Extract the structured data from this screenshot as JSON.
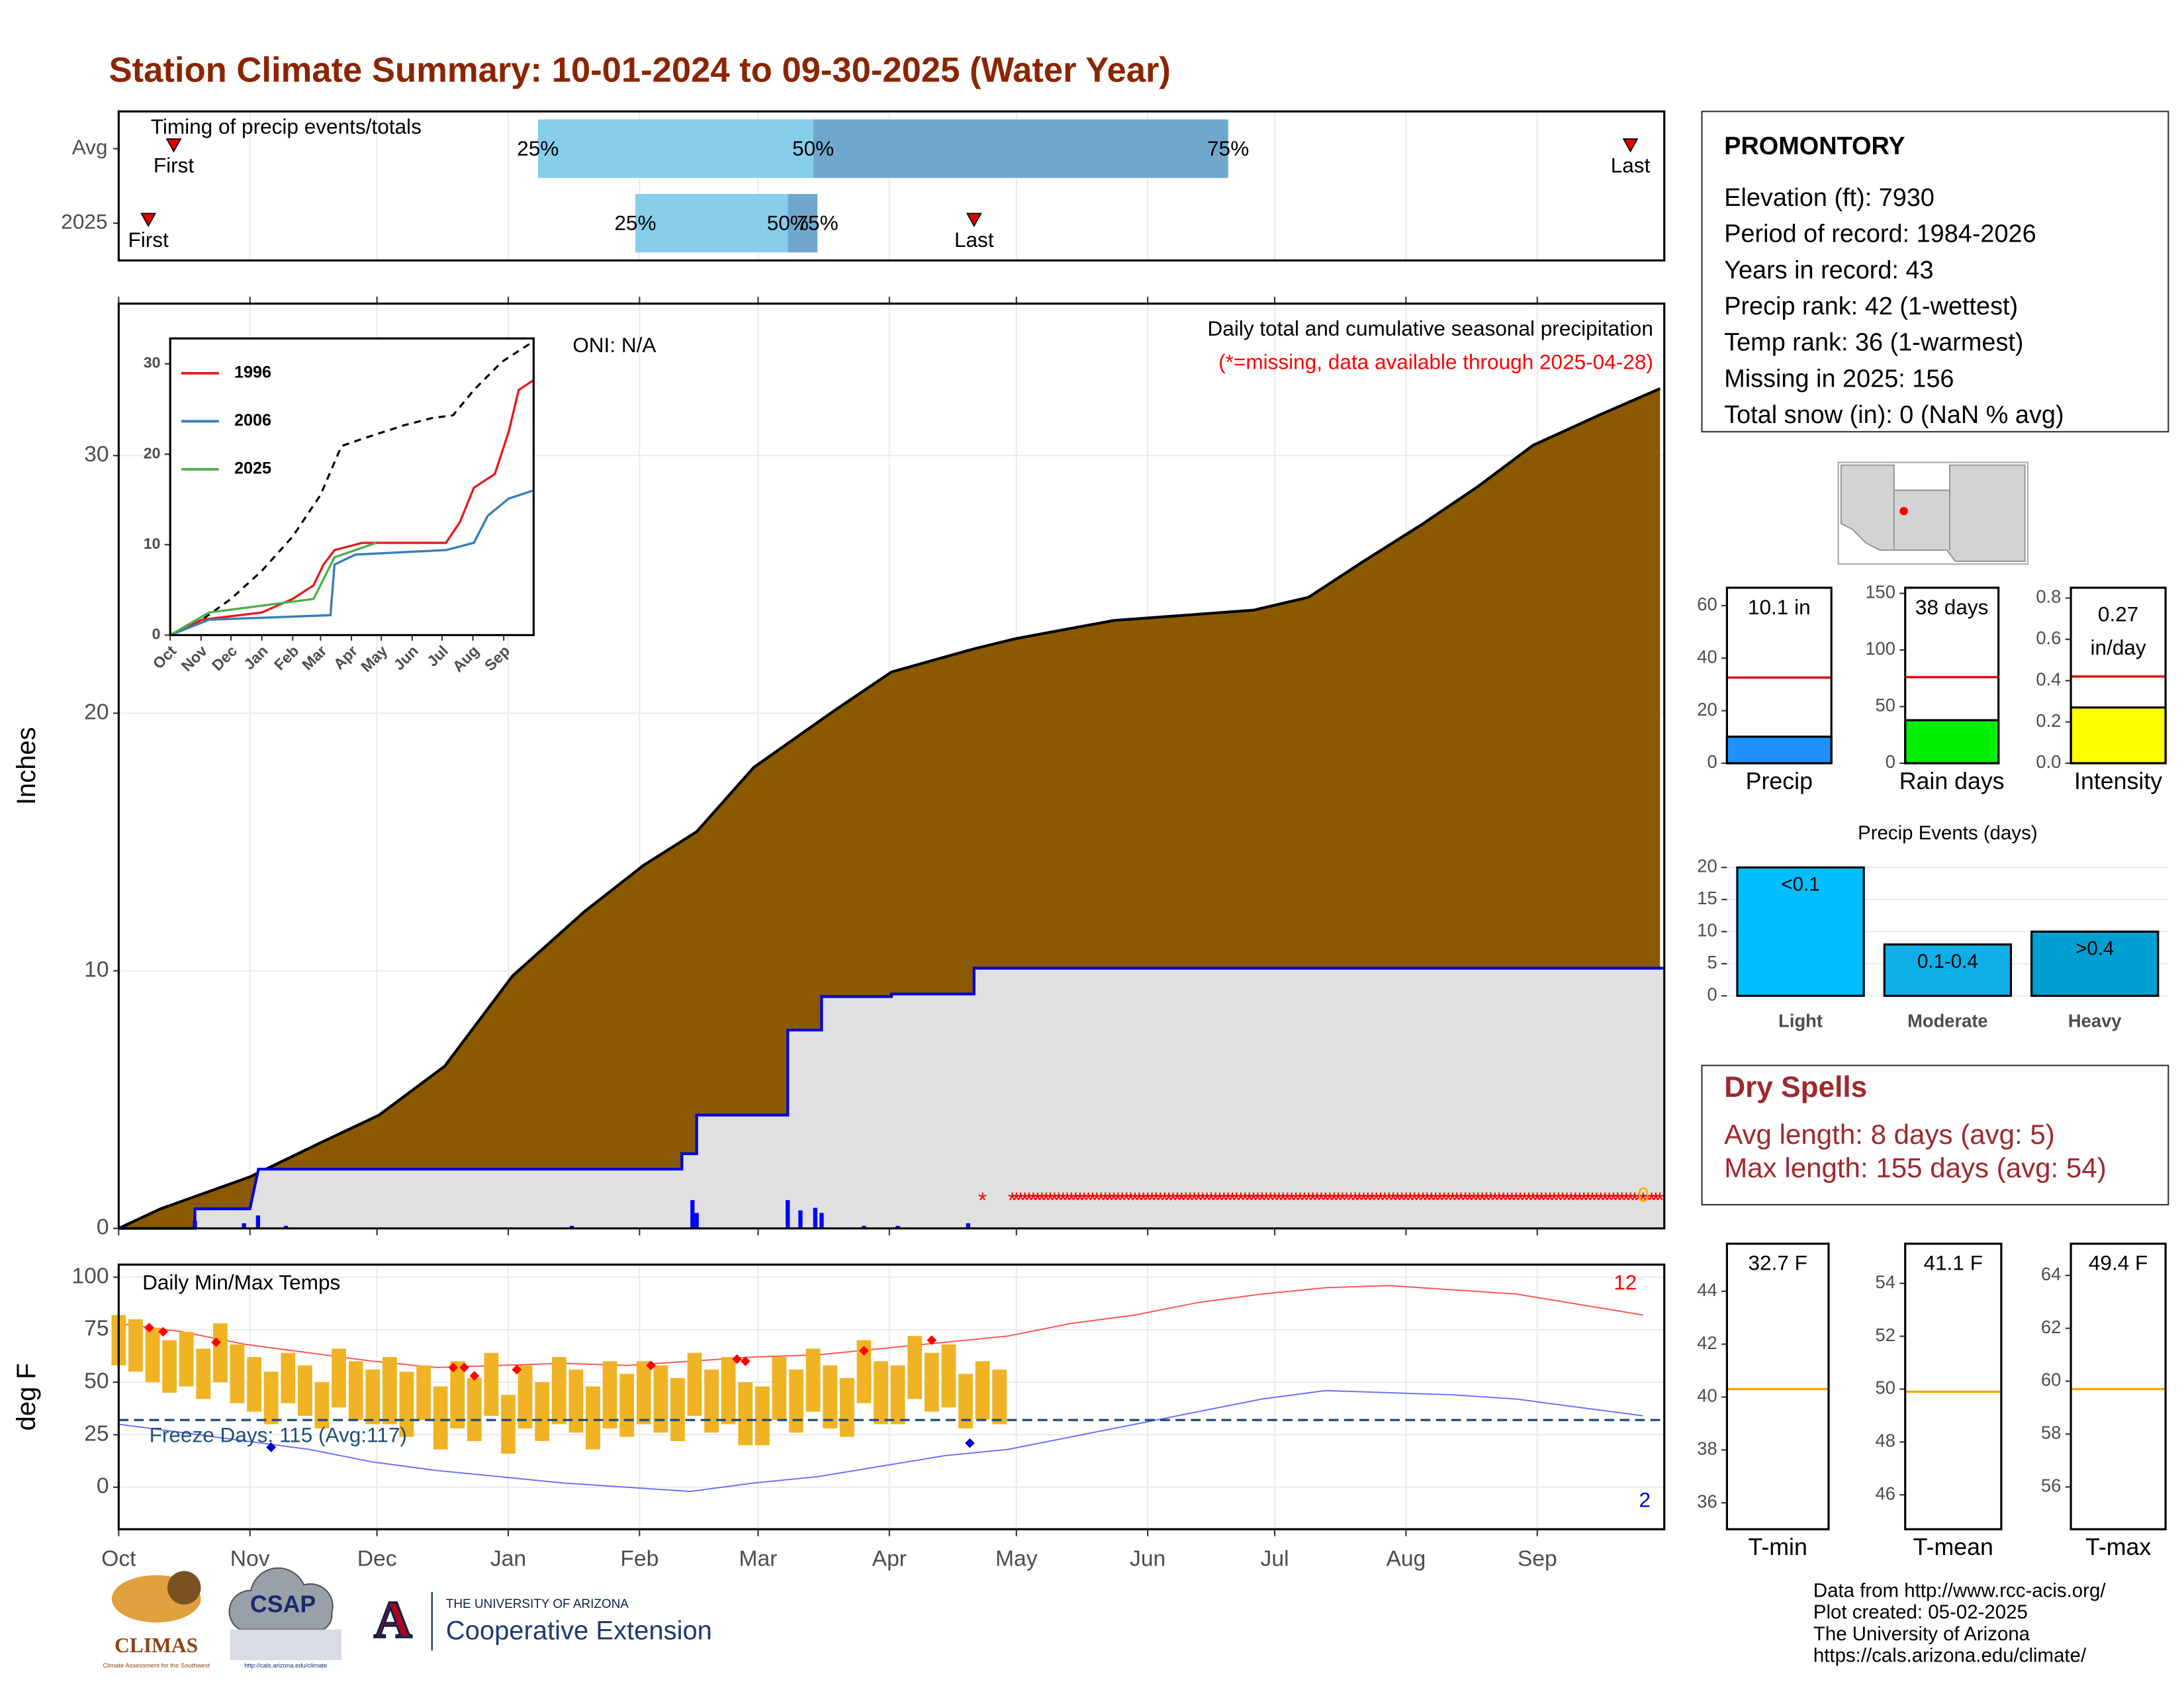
{
  "title": "Station Climate Summary: 10-01-2024 to 09-30-2025 (Water Year)",
  "chart_data": [
    {
      "type": "timing",
      "title": "Timing of precip events/totals",
      "categories": [
        "Avg",
        "2025"
      ],
      "q25": [
        99,
        122
      ],
      "q50": [
        164,
        158
      ],
      "q75": [
        262,
        165
      ],
      "quantile_labels": [
        "25%",
        "50%",
        "75%"
      ],
      "first": [
        13,
        7
      ],
      "last": [
        357,
        202
      ],
      "first_label": "First",
      "last_label": "Last",
      "xlim": [
        0,
        365
      ],
      "xticks": [
        0,
        31,
        61,
        92,
        123,
        151,
        182,
        212,
        243,
        273,
        304,
        335
      ],
      "colors": [
        "#87ceeb",
        "#6fa8cc"
      ],
      "marker_color": "#e00000"
    },
    {
      "type": "area",
      "ylabel": "Inches",
      "oni": "ONI: N/A",
      "subtitle": "Daily total and cumulative seasonal precipitation",
      "note": "(*=missing, data available through 2025-04-28)",
      "snow_total": 0,
      "xlim": [
        0,
        365
      ],
      "ylim": [
        0,
        35.9
      ],
      "yticks": [
        0,
        10,
        20,
        30
      ],
      "xticks": [
        0,
        31,
        61,
        92,
        123,
        151,
        182,
        212,
        243,
        273,
        304,
        335
      ],
      "grid": true,
      "average": {
        "color": "#8b5a00",
        "x": [
          0,
          9.9,
          31,
          48,
          61.5,
          77,
          93,
          110,
          124,
          136.5,
          150,
          169,
          182.5,
          202,
          212,
          235,
          268,
          281,
          294,
          307.5,
          321,
          334,
          350,
          364
        ],
        "values": [
          0,
          0.76,
          2.0,
          3.35,
          4.4,
          6.3,
          9.8,
          12.3,
          14.1,
          15.4,
          17.9,
          20.1,
          21.6,
          22.5,
          22.9,
          23.6,
          24.0,
          24.5,
          25.9,
          27.3,
          28.8,
          30.4,
          31.6,
          32.6
        ]
      },
      "current": {
        "color": "#e0e0e0",
        "line_color": "#0000dd",
        "x": [
          0,
          18,
          18,
          31,
          33,
          38,
          133,
          133,
          136.5,
          136.5,
          158,
          158,
          166,
          166,
          182.5,
          182.5,
          202,
          202,
          365
        ],
        "values": [
          0,
          0,
          0.76,
          0.76,
          2.3,
          2.3,
          2.3,
          2.9,
          2.9,
          4.4,
          4.4,
          7.7,
          7.7,
          9.0,
          9.0,
          9.1,
          9.1,
          10.1,
          10.1
        ]
      },
      "daily": {
        "color": "#0000ff",
        "x": [
          18,
          29.6,
          32.9,
          39.5,
          107,
          135.5,
          136.5,
          158,
          161,
          164.5,
          166,
          176,
          184,
          200.6
        ],
        "values": [
          0.3,
          0.2,
          0.5,
          0.1,
          0.1,
          1.1,
          0.6,
          1.1,
          0.7,
          0.8,
          0.6,
          0.1,
          0.1,
          0.2
        ]
      },
      "missing_symbol": "*",
      "missing_x": [
        204
      ],
      "missing_range": [
        211,
        364
      ],
      "missing_color": "#ff0000"
    },
    {
      "type": "line",
      "xlim": [
        0,
        365
      ],
      "ylim": [
        0,
        32.8
      ],
      "yticks": [
        0,
        10,
        20,
        30
      ],
      "xticks": [
        {
          "value": 0,
          "label": "Oct"
        },
        {
          "value": 31,
          "label": "Nov"
        },
        {
          "value": 61,
          "label": "Dec"
        },
        {
          "value": 92,
          "label": "Jan"
        },
        {
          "value": 123,
          "label": "Feb"
        },
        {
          "value": 151,
          "label": "Mar"
        },
        {
          "value": 182,
          "label": "Apr"
        },
        {
          "value": 212,
          "label": "May"
        },
        {
          "value": 243,
          "label": "Jun"
        },
        {
          "value": 273,
          "label": "Jul"
        },
        {
          "value": 304,
          "label": "Aug"
        },
        {
          "value": 335,
          "label": "Sep"
        }
      ],
      "dashed": {
        "color": "#000000",
        "x": [
          0,
          32,
          61,
          92,
          123,
          151,
          172,
          193,
          235,
          263,
          284,
          305,
          333,
          361
        ],
        "values": [
          0,
          1.7,
          4,
          7.1,
          10.9,
          15.5,
          20.9,
          21.7,
          23.2,
          24,
          24.3,
          27.1,
          30.2,
          32.2
        ]
      },
      "series": [
        {
          "name": "1996",
          "color": "#e41a1c",
          "x": [
            0,
            32,
            92,
            123,
            144,
            154,
            165,
            193,
            277,
            291,
            305,
            326,
            340,
            350,
            365
          ],
          "values": [
            0,
            1.7,
            2.5,
            4,
            5.5,
            7.8,
            9.4,
            10.2,
            10.2,
            12.5,
            16.3,
            17.8,
            22.5,
            27.1,
            28.2
          ]
        },
        {
          "name": "2006",
          "color": "#377eb8",
          "x": [
            0,
            39,
            161,
            165,
            186,
            277,
            305,
            319,
            340,
            365
          ],
          "values": [
            0,
            1.7,
            2.2,
            7.8,
            8.9,
            9.4,
            10.2,
            13.2,
            15.1,
            16.0
          ]
        },
        {
          "name": "2025",
          "color": "#4daf4a",
          "x": [
            0,
            39,
            144,
            165,
            186,
            207
          ],
          "values": [
            0,
            2.5,
            4,
            8.6,
            9.4,
            10.2
          ]
        }
      ]
    },
    {
      "type": "range",
      "title": "Daily Min/Max Temps",
      "ylabel": "deg F",
      "freeze_label": "Freeze Days: 115 (Avg:117)",
      "freeze": 32,
      "freeze_color": "#1f4e79",
      "xlim": [
        0,
        365
      ],
      "ylim": [
        -20,
        106
      ],
      "yticks": [
        0,
        25,
        50,
        75,
        100
      ],
      "grid": true,
      "xticks": [
        {
          "value": 0,
          "label": "Oct"
        },
        {
          "value": 31,
          "label": "Nov"
        },
        {
          "value": 61,
          "label": "Dec"
        },
        {
          "value": 92,
          "label": "Jan"
        },
        {
          "value": 123,
          "label": "Feb"
        },
        {
          "value": 151,
          "label": "Mar"
        },
        {
          "value": 182,
          "label": "Apr"
        },
        {
          "value": 212,
          "label": "May"
        },
        {
          "value": 243,
          "label": "Jun"
        },
        {
          "value": 273,
          "label": "Jul"
        },
        {
          "value": 304,
          "label": "Aug"
        },
        {
          "value": 335,
          "label": "Sep"
        }
      ],
      "color": "#f0b323",
      "x": [
        0,
        4,
        8,
        12,
        16,
        20,
        24,
        28,
        32,
        36,
        40,
        44,
        48,
        52,
        56,
        60,
        64,
        68,
        72,
        76,
        80,
        84,
        88,
        92,
        96,
        100,
        104,
        108,
        112,
        116,
        120,
        124,
        128,
        132,
        136,
        140,
        144,
        148,
        152,
        156,
        160,
        164,
        168,
        172,
        176,
        180,
        184,
        188,
        192,
        196,
        200,
        204,
        208
      ],
      "tmax": [
        82,
        80,
        76,
        70,
        74,
        66,
        78,
        68,
        62,
        55,
        64,
        58,
        50,
        66,
        60,
        56,
        62,
        55,
        58,
        48,
        60,
        52,
        64,
        44,
        58,
        50,
        62,
        56,
        48,
        60,
        54,
        60,
        58,
        52,
        64,
        56,
        62,
        50,
        48,
        62,
        56,
        66,
        58,
        52,
        70,
        60,
        58,
        72,
        64,
        68,
        54,
        60,
        56
      ],
      "tmin": [
        58,
        55,
        50,
        45,
        48,
        42,
        50,
        40,
        36,
        30,
        40,
        34,
        28,
        38,
        32,
        30,
        30,
        24,
        32,
        18,
        28,
        22,
        34,
        16,
        28,
        22,
        30,
        26,
        18,
        28,
        24,
        30,
        26,
        22,
        34,
        26,
        30,
        20,
        20,
        32,
        26,
        36,
        28,
        24,
        40,
        30,
        30,
        42,
        36,
        38,
        28,
        32,
        30
      ],
      "normal_high": {
        "color": "#ff5050",
        "x": [
          0,
          15,
          30,
          45,
          60,
          75,
          90,
          105,
          120,
          135,
          150,
          165,
          180,
          195,
          210,
          225,
          240,
          255,
          270,
          285,
          300,
          315,
          330,
          345,
          360
        ],
        "values": [
          78,
          74,
          68,
          64,
          60,
          57,
          58,
          59,
          58,
          60,
          62,
          63,
          66,
          69,
          72,
          78,
          82,
          88,
          92,
          95,
          96,
          94,
          92,
          87,
          82
        ]
      },
      "normal_low": {
        "color": "#6a6aff",
        "x": [
          0,
          15,
          30,
          45,
          60,
          75,
          90,
          105,
          120,
          135,
          150,
          165,
          180,
          195,
          210,
          225,
          240,
          255,
          270,
          285,
          300,
          315,
          330,
          345,
          360
        ],
        "values": [
          30,
          26,
          22,
          18,
          12,
          8,
          5,
          2,
          0,
          -2,
          2,
          5,
          10,
          15,
          18,
          24,
          30,
          36,
          42,
          46,
          45,
          44,
          42,
          38,
          34
        ]
      },
      "record_high": {
        "color": "#ff0000",
        "x": [
          7.2,
          10.5,
          23,
          79,
          81.6,
          84,
          94,
          125.7,
          146,
          148,
          176,
          192
        ],
        "values": [
          76,
          74,
          69,
          57,
          57,
          53,
          56,
          58,
          61,
          60,
          65,
          70
        ]
      },
      "record_low": {
        "color": "#0000cc",
        "x": [
          36,
          201
        ],
        "values": [
          19,
          21
        ]
      },
      "record_high_count": 12,
      "record_low_count": 2
    },
    {
      "type": "gauge",
      "label": "Precip",
      "value": 10.1,
      "value_label": "10.1 in",
      "reference": 32.6,
      "reference_color": "#e00000",
      "bar": true,
      "color": "#1e90ff",
      "ylim": [
        0,
        66.8
      ],
      "yticks": [
        0,
        20,
        40,
        60
      ]
    },
    {
      "type": "gauge",
      "label": "Rain days",
      "value": 38,
      "value_label": "38 days",
      "reference": 76,
      "reference_color": "#e00000",
      "bar": true,
      "color": "#00ee00",
      "ylim": [
        0,
        155
      ],
      "yticks": [
        0,
        50,
        100,
        150
      ]
    },
    {
      "type": "gauge",
      "label": "Intensity",
      "value": 0.27,
      "value_label": "0.27",
      "unit": "in/day",
      "reference": 0.42,
      "reference_color": "#e00000",
      "bar": true,
      "color": "#ffff00",
      "ylim": [
        0,
        0.85
      ],
      "yticks": [
        {
          "value": 0,
          "label": "0.0"
        },
        0.2,
        0.4,
        0.6,
        0.8
      ]
    },
    {
      "type": "bar",
      "title": "Precip Events (days)",
      "categories": [
        "Light",
        "Moderate",
        "Heavy"
      ],
      "values": [
        20,
        8,
        10
      ],
      "bar_labels": [
        "<0.1",
        "0.1-0.4",
        ">0.4"
      ],
      "colors": [
        "#00bfff",
        "#10aee8",
        "#009fd2"
      ],
      "ylim": [
        -0.65,
        21.7
      ],
      "yticks": [
        0,
        5,
        10,
        15,
        20
      ],
      "grid": true
    },
    {
      "type": "gauge",
      "label": "T-min",
      "value": 32.7,
      "value_label": "32.7 F",
      "reference": 40.3,
      "reference_color": "#ffa500",
      "bar": false,
      "ylim": [
        35.0,
        45.8
      ],
      "yticks": [
        36,
        38,
        40,
        42,
        44
      ]
    },
    {
      "type": "gauge",
      "label": "T-mean",
      "value": 41.1,
      "value_label": "41.1 F",
      "reference": 49.9,
      "reference_color": "#ffa500",
      "bar": false,
      "ylim": [
        44.7,
        55.5
      ],
      "yticks": [
        46,
        48,
        50,
        52,
        54
      ]
    },
    {
      "type": "gauge",
      "label": "T-max",
      "value": 49.4,
      "value_label": "49.4 F",
      "reference": 59.7,
      "reference_color": "#ffa500",
      "bar": false,
      "ylim": [
        54.4,
        65.2
      ],
      "yticks": [
        56,
        58,
        60,
        62,
        64
      ]
    }
  ],
  "station": {
    "name": "PROMONTORY",
    "lines": [
      "Elevation (ft): 7930",
      "Period of record: 1984-2026",
      "Years in record: 43",
      "Precip rank: 42 (1-wettest)",
      "Temp rank: 36 (1-warmest)",
      "Missing in 2025: 156",
      "Total snow (in): 0 (NaN % avg)"
    ]
  },
  "dry_spells": {
    "title": "Dry Spells",
    "lines": [
      "Avg length: 8 days (avg: 5)",
      "Max length: 155 days (avg: 54)"
    ]
  },
  "footer": {
    "climas": "CLIMAS",
    "climas_sub": "Climate Assessment for the Southwest",
    "csap": "CSAP",
    "csap_url": "http://cals.arizona.edu/climate",
    "ua_letter": "A",
    "ua_small": "THE UNIVERSITY OF ARIZONA",
    "ua_big": "Cooperative Extension",
    "credits": [
      "Data from http://www.rcc-acis.org/",
      "Plot created: 05-02-2025",
      "The University of Arizona",
      "https://cals.arizona.edu/climate/"
    ]
  }
}
